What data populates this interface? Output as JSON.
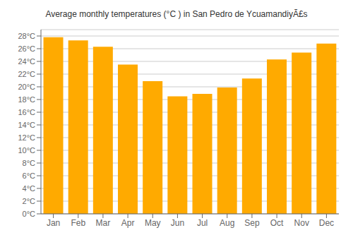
{
  "chart_data": {
    "type": "bar",
    "title": "Average monthly temperatures (°C ) in San Pedro de YcuamandiyÃ£s",
    "categories": [
      "Jan",
      "Feb",
      "Mar",
      "Apr",
      "May",
      "Jun",
      "Jul",
      "Aug",
      "Sep",
      "Oct",
      "Nov",
      "Dec"
    ],
    "values": [
      27.8,
      27.3,
      26.3,
      23.5,
      20.9,
      18.5,
      18.9,
      19.9,
      21.3,
      24.3,
      25.4,
      26.8
    ],
    "color": "#FFAA00",
    "ylim": [
      0,
      29
    ],
    "yticks": [
      {
        "value": 0,
        "label": "0°C"
      },
      {
        "value": 2,
        "label": "2°C"
      },
      {
        "value": 4,
        "label": "4°C"
      },
      {
        "value": 6,
        "label": "6°C"
      },
      {
        "value": 8,
        "label": "8°C"
      },
      {
        "value": 10,
        "label": "10°C"
      },
      {
        "value": 12,
        "label": "12°C"
      },
      {
        "value": 14,
        "label": "14°C"
      },
      {
        "value": 16,
        "label": "16°C"
      },
      {
        "value": 18,
        "label": "18°C"
      },
      {
        "value": 20,
        "label": "20°C"
      },
      {
        "value": 22,
        "label": "22°C"
      },
      {
        "value": 24,
        "label": "24°C"
      },
      {
        "value": 26,
        "label": "26°C"
      },
      {
        "value": 28,
        "label": "28°C"
      }
    ],
    "grid": true
  }
}
